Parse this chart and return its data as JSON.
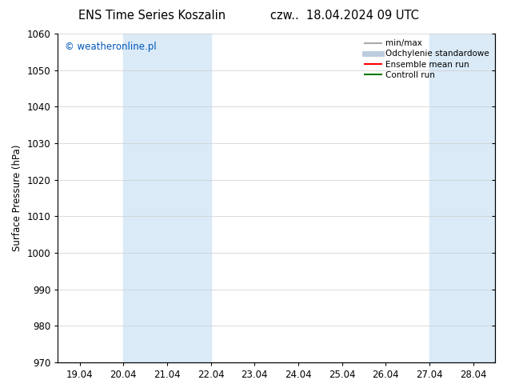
{
  "title_left": "ENS Time Series Koszalin",
  "title_right": "czw..  18.04.2024 09 UTC",
  "ylabel": "Surface Pressure (hPa)",
  "ylim": [
    970,
    1060
  ],
  "yticks": [
    970,
    980,
    990,
    1000,
    1010,
    1020,
    1030,
    1040,
    1050,
    1060
  ],
  "x_labels": [
    "19.04",
    "20.04",
    "21.04",
    "22.04",
    "23.04",
    "24.04",
    "25.04",
    "26.04",
    "27.04",
    "28.04"
  ],
  "x_positions": [
    0,
    1,
    2,
    3,
    4,
    5,
    6,
    7,
    8,
    9
  ],
  "xlim": [
    -0.5,
    9.5
  ],
  "shaded_bands": [
    {
      "x_start": 1.0,
      "x_end": 3.0,
      "color": "#daeaf7"
    },
    {
      "x_start": 8.0,
      "x_end": 9.5,
      "color": "#daeaf7"
    }
  ],
  "watermark": "© weatheronline.pl",
  "watermark_color": "#0055bb",
  "background_color": "#ffffff",
  "legend_entries": [
    {
      "label": "min/max",
      "color": "#aaaaaa",
      "lw": 1.5
    },
    {
      "label": "Odchylenie standardowe",
      "color": "#bbccdd",
      "lw": 5
    },
    {
      "label": "Ensemble mean run",
      "color": "#ff0000",
      "lw": 1.5
    },
    {
      "label": "Controll run",
      "color": "#007700",
      "lw": 1.5
    }
  ],
  "grid_color": "#cccccc",
  "tick_label_fontsize": 8.5,
  "title_fontsize": 10.5,
  "ylabel_fontsize": 8.5,
  "watermark_fontsize": 8.5,
  "legend_fontsize": 7.5
}
